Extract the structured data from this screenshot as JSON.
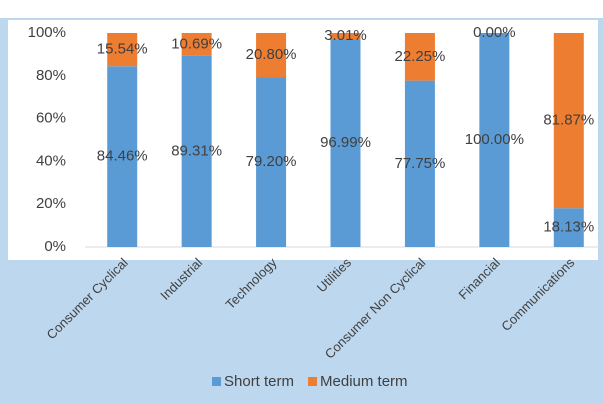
{
  "chart_data": {
    "type": "stacked_bar",
    "categories": [
      "Consumer Cyclical",
      "Industrial",
      "Technology",
      "Utilities",
      "Consumer Non Cyclical",
      "Financial",
      "Communications"
    ],
    "series": [
      {
        "name": "Short term",
        "color": "#5b9bd5",
        "values": [
          84.46,
          89.31,
          79.2,
          96.99,
          77.75,
          100.0,
          18.13
        ],
        "value_labels": [
          "84.46%",
          "89.31%",
          "79.20%",
          "96.99%",
          "77.75%",
          "100.00%",
          "18.13%"
        ]
      },
      {
        "name": "Medium term",
        "color": "#ed7d31",
        "values": [
          15.54,
          10.69,
          20.8,
          3.01,
          22.25,
          0.0,
          81.87
        ],
        "value_labels": [
          "15.54%",
          "10.69%",
          "20.80%",
          "3.01%",
          "22.25%",
          "0.00%",
          "81.87%"
        ]
      }
    ],
    "ylim": [
      0,
      100
    ],
    "yticks": [
      {
        "value": 0,
        "label": "0%"
      },
      {
        "value": 20,
        "label": "20%"
      },
      {
        "value": 40,
        "label": "40%"
      },
      {
        "value": 60,
        "label": "60%"
      },
      {
        "value": 80,
        "label": "80%"
      },
      {
        "value": 100,
        "label": "100%"
      }
    ],
    "legend": "bottom"
  }
}
